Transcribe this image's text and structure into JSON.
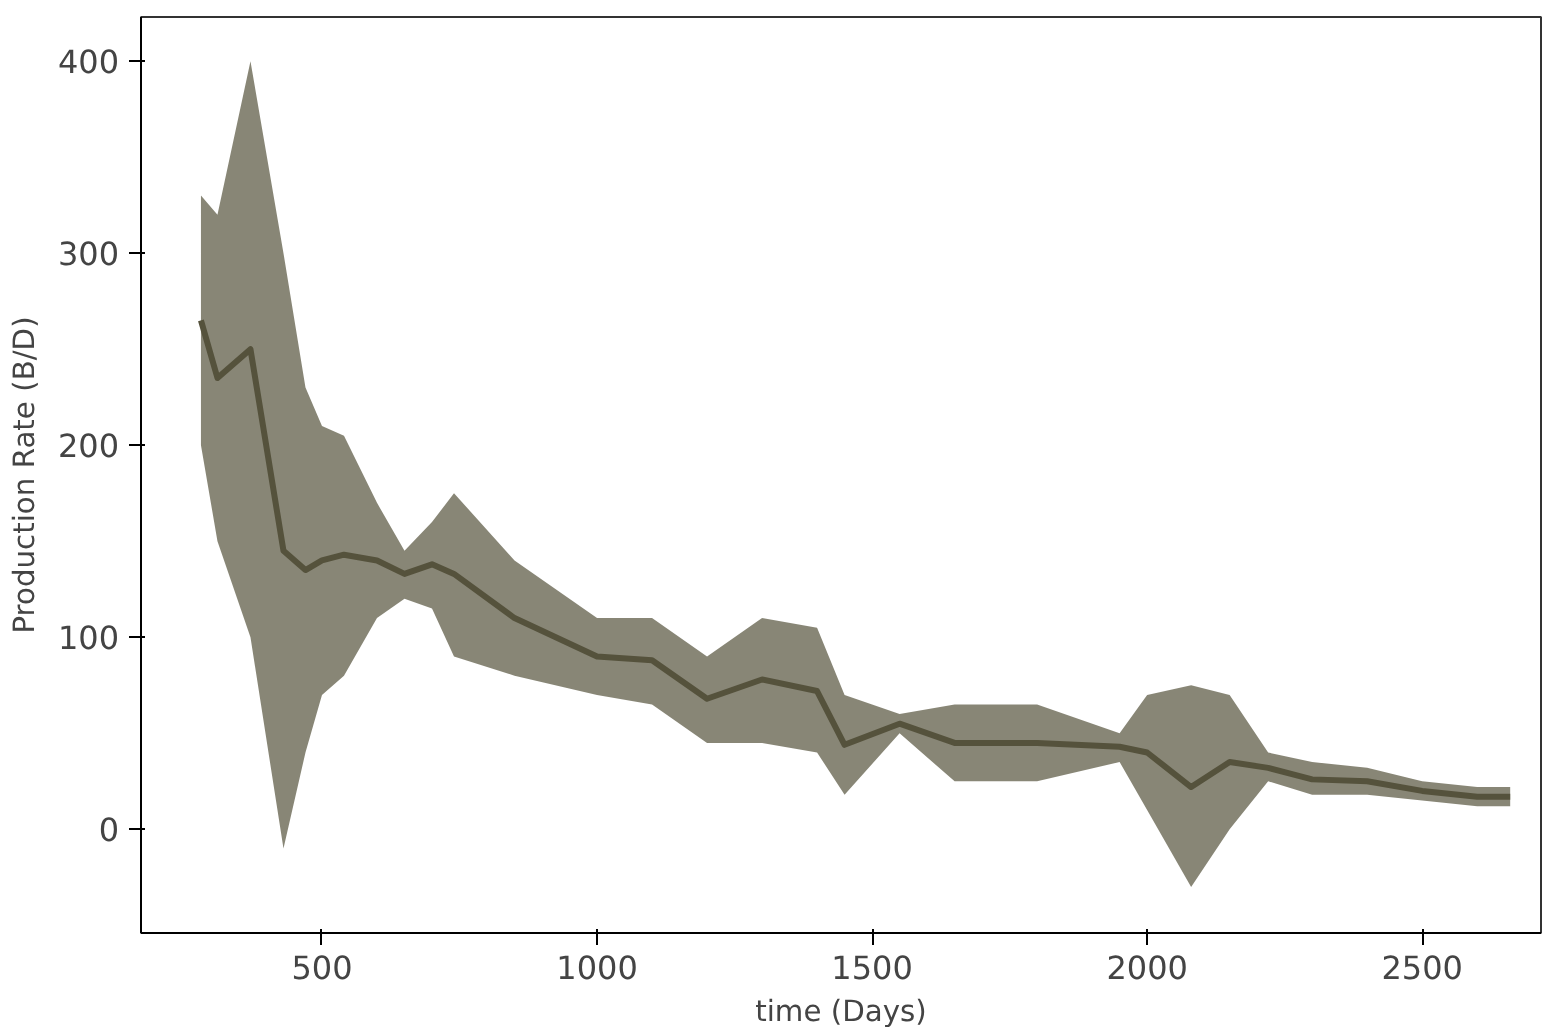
{
  "chart_data": {
    "type": "line",
    "xlabel": "time (Days)",
    "ylabel": "Production Rate (B/D)",
    "xlim": [
      171,
      2716
    ],
    "ylim": [
      -54,
      423
    ],
    "xticks": [
      500,
      1000,
      1500,
      2000,
      2500
    ],
    "yticks": [
      0,
      100,
      200,
      300,
      400
    ],
    "grid": false,
    "series": [
      {
        "color": "#55523c",
        "x": [
          280,
          310,
          370,
          430,
          470,
          500,
          540,
          600,
          650,
          700,
          740,
          850,
          1000,
          1100,
          1200,
          1300,
          1400,
          1450,
          1550,
          1650,
          1800,
          1950,
          2000,
          2080,
          2150,
          2220,
          2300,
          2400,
          2500,
          2600,
          2660
        ],
        "values": [
          265,
          235,
          250,
          145,
          135,
          140,
          143,
          140,
          133,
          138,
          133,
          110,
          90,
          88,
          68,
          78,
          72,
          44,
          55,
          45,
          45,
          43,
          40,
          22,
          35,
          32,
          26,
          25,
          20,
          17,
          17
        ],
        "upper": [
          330,
          320,
          400,
          300,
          230,
          210,
          205,
          170,
          145,
          160,
          175,
          140,
          110,
          110,
          90,
          110,
          105,
          70,
          60,
          65,
          65,
          50,
          70,
          75,
          70,
          40,
          35,
          32,
          25,
          22,
          22
        ],
        "lower": [
          200,
          150,
          100,
          -10,
          40,
          70,
          80,
          110,
          120,
          115,
          90,
          80,
          70,
          65,
          45,
          45,
          40,
          18,
          50,
          25,
          25,
          35,
          10,
          -30,
          0,
          25,
          18,
          18,
          15,
          12,
          12
        ]
      }
    ]
  }
}
